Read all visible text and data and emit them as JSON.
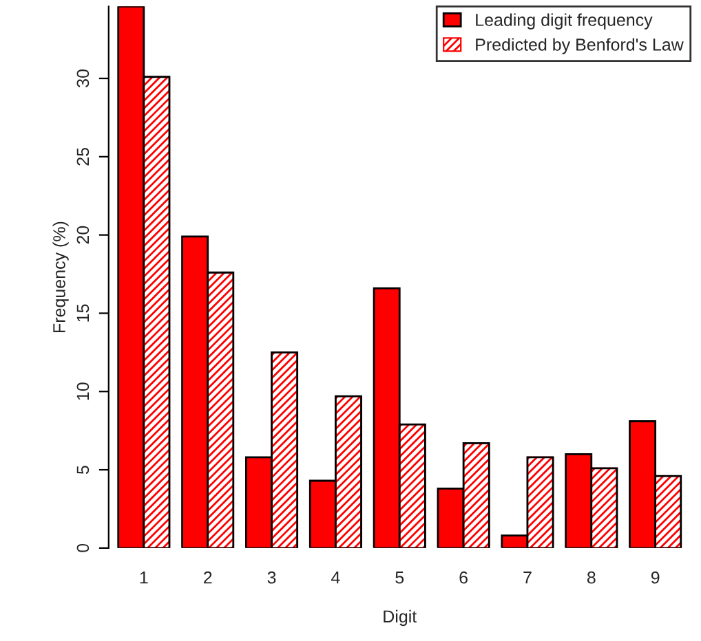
{
  "chart_data": {
    "type": "bar",
    "xlabel": "Digit",
    "ylabel": "Frequency (%)",
    "categories": [
      "1",
      "2",
      "3",
      "4",
      "5",
      "6",
      "7",
      "8",
      "9"
    ],
    "series": [
      {
        "name": "Leading digit frequency",
        "color": "#ff0000",
        "values": [
          34.6,
          19.9,
          5.8,
          4.3,
          16.6,
          3.8,
          0.8,
          6.0,
          8.1
        ]
      },
      {
        "name": "Predicted by Benford's Law",
        "color": "#ff0000",
        "values": [
          30.1,
          17.6,
          12.5,
          9.7,
          7.9,
          6.7,
          5.8,
          5.1,
          4.6
        ]
      }
    ],
    "ylim": [
      0,
      34.6
    ],
    "yticks": [
      0,
      5,
      10,
      15,
      20,
      25,
      30
    ],
    "grid": false,
    "legend": "top right"
  }
}
